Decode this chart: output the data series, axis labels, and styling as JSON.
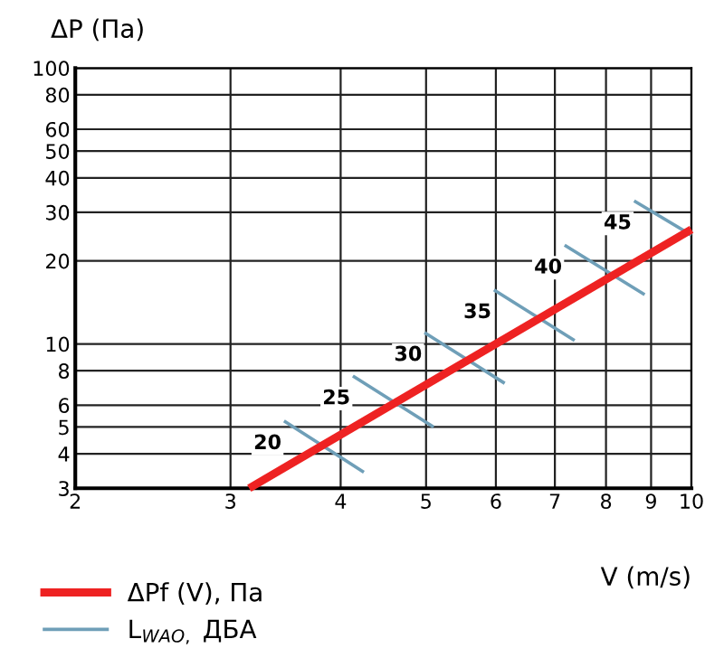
{
  "chart_data": {
    "type": "line",
    "xlabel": "V (m/s)",
    "ylabel": "ΔP (Па)",
    "log": "xy",
    "xlim": [
      2,
      10
    ],
    "ylim": [
      3,
      100
    ],
    "xticks": [
      2,
      3,
      4,
      5,
      6,
      7,
      8,
      9,
      10
    ],
    "yticks": [
      3,
      4,
      5,
      6,
      8,
      10,
      20,
      30,
      40,
      50,
      60,
      80,
      100
    ],
    "grid": true,
    "legend": "bottom left",
    "marker": "none",
    "line_style": "solid",
    "series": [
      {
        "name": "ΔPf (V), Па",
        "color": "#ee2222",
        "x": [
          3.15,
          10
        ],
        "values": [
          3,
          26
        ]
      },
      {
        "name": "L$_{WAO,}$ ДБА",
        "color": "#6f9fb8",
        "x": [
          3.45,
          4.25,
          null,
          4.13,
          5.1,
          null,
          4.98,
          6.14,
          null,
          5.97,
          7.37,
          null,
          7.18,
          8.85,
          null,
          8.61,
          10
        ],
        "values": [
          5.26,
          3.43,
          null,
          7.65,
          5.0,
          null,
          11.0,
          7.2,
          null,
          15.7,
          10.3,
          null,
          22.8,
          15.1,
          null,
          33.0,
          24.8
        ]
      }
    ],
    "annotations": [
      {
        "text": "20",
        "x": 3.45,
        "y": 5.26
      },
      {
        "text": "25",
        "x": 4.13,
        "y": 7.65
      },
      {
        "text": "30",
        "x": 4.98,
        "y": 11.0
      },
      {
        "text": "35",
        "x": 5.97,
        "y": 15.7
      },
      {
        "text": "40",
        "x": 7.18,
        "y": 22.8
      },
      {
        "text": "45",
        "x": 8.61,
        "y": 33.0
      }
    ]
  }
}
